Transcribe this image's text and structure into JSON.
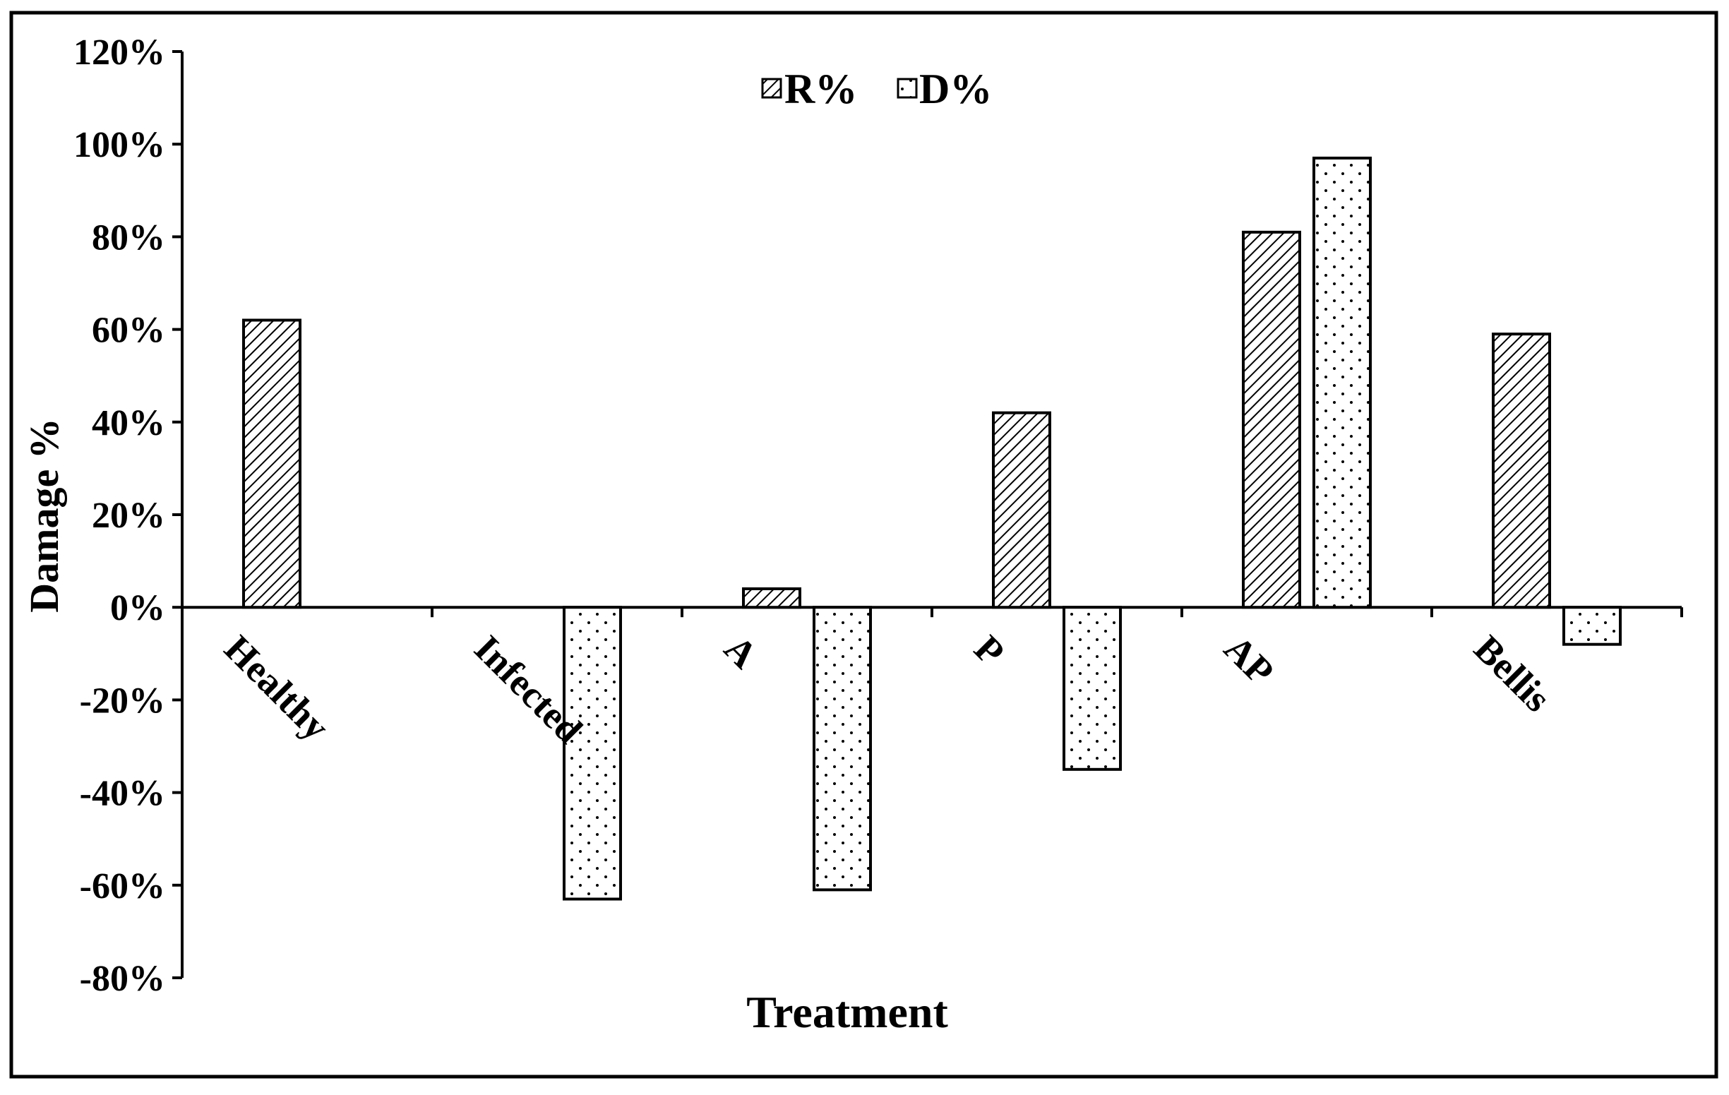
{
  "chart_data": {
    "type": "bar",
    "title": "",
    "xlabel": "Treatment",
    "ylabel": "Damage %",
    "categories": [
      "Healthy",
      "Infected",
      "A",
      "P",
      "AP",
      "Bellis"
    ],
    "series": [
      {
        "name": "R%",
        "values": [
          62,
          0,
          4,
          42,
          81,
          59
        ],
        "pattern": "diagonal-hatch"
      },
      {
        "name": "D%",
        "values": [
          0,
          -63,
          -61,
          -35,
          97,
          -8
        ],
        "pattern": "dots"
      }
    ],
    "ylim": [
      -80,
      120
    ],
    "yticks": [
      120,
      100,
      80,
      60,
      40,
      20,
      0,
      -20,
      -40,
      -60,
      -80
    ],
    "ytick_labels": [
      "120%",
      "100%",
      "80%",
      "60%",
      "40%",
      "20%",
      "0%",
      "-20%",
      "-40%",
      "-60%",
      "-80%"
    ],
    "grid": false,
    "legend_position": "top-center",
    "colors": {
      "bar_outline": "#000000",
      "hatch": "#000000",
      "background": "#ffffff"
    }
  }
}
